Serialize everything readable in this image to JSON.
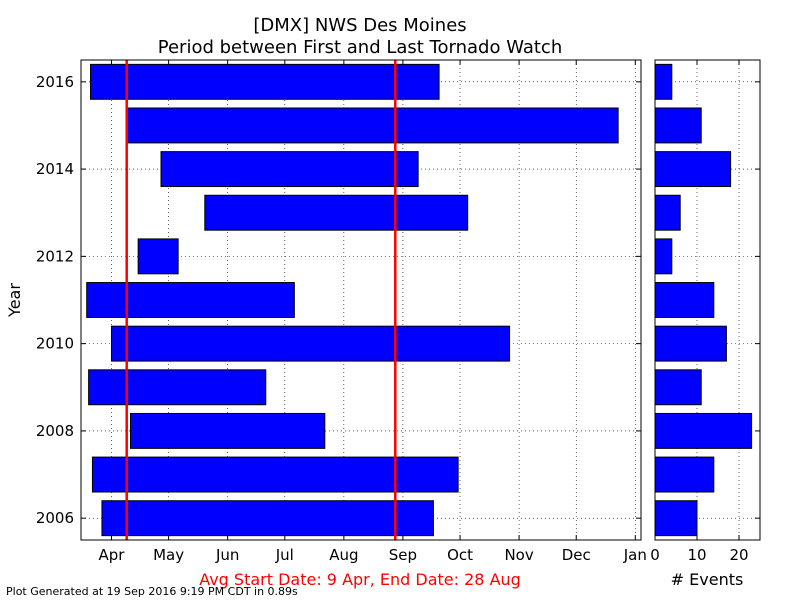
{
  "title_line1": "[DMX] NWS Des Moines",
  "title_line2": "Period between First and Last Tornado Watch",
  "footer_note": "Avg Start Date: 9 Apr, End Date: 28 Aug",
  "generated_text": "Plot Generated at 19 Sep 2016 9:19 PM CDT in 0.89s",
  "colors": {
    "bar": "#0000ff",
    "avg_line": "#ff0000",
    "footer": "#ff0000"
  },
  "chart_data": [
    {
      "type": "bar",
      "orientation": "horizontal-floating",
      "title": "[DMX] NWS Des Moines\nPeriod between First and Last Tornado Watch",
      "ylabel": "Year",
      "xlabel": "Avg Start Date: 9 Apr, End Date: 28 Aug",
      "x_ticks": [
        "Apr",
        "May",
        "Jun",
        "Jul",
        "Aug",
        "Sep",
        "Oct",
        "Nov",
        "Dec",
        "Jan"
      ],
      "y_ticks": [
        "2006",
        "2008",
        "2010",
        "2012",
        "2014",
        "2016"
      ],
      "xlim": [
        "2000-03-16",
        "2001-01-04"
      ],
      "ylim": [
        2005.5,
        2016.5
      ],
      "grid": true,
      "avg_start": "2000-04-09",
      "avg_end": "2000-08-28",
      "series": [
        {
          "year": 2016,
          "start": "2000-03-21",
          "end": "2000-09-20"
        },
        {
          "year": 2015,
          "start": "2000-04-09",
          "end": "2000-12-23"
        },
        {
          "year": 2014,
          "start": "2000-04-27",
          "end": "2000-09-09"
        },
        {
          "year": 2013,
          "start": "2000-05-20",
          "end": "2000-10-05"
        },
        {
          "year": 2012,
          "start": "2000-04-15",
          "end": "2000-05-06"
        },
        {
          "year": 2011,
          "start": "2000-03-19",
          "end": "2000-07-06"
        },
        {
          "year": 2010,
          "start": "2000-04-01",
          "end": "2000-10-27"
        },
        {
          "year": 2009,
          "start": "2000-03-20",
          "end": "2000-06-21"
        },
        {
          "year": 2008,
          "start": "2000-04-11",
          "end": "2000-07-22"
        },
        {
          "year": 2007,
          "start": "2000-03-22",
          "end": "2000-09-30"
        },
        {
          "year": 2006,
          "start": "2000-03-27",
          "end": "2000-09-17"
        }
      ]
    },
    {
      "type": "bar",
      "orientation": "horizontal",
      "xlabel": "# Events",
      "x_ticks": [
        "0",
        "10",
        "20"
      ],
      "xlim": [
        0,
        25
      ],
      "grid": true,
      "years": [
        2016,
        2015,
        2014,
        2013,
        2012,
        2011,
        2010,
        2009,
        2008,
        2007,
        2006
      ],
      "values": [
        4,
        11,
        18,
        6,
        4,
        14,
        17,
        11,
        23,
        14,
        10
      ]
    }
  ]
}
